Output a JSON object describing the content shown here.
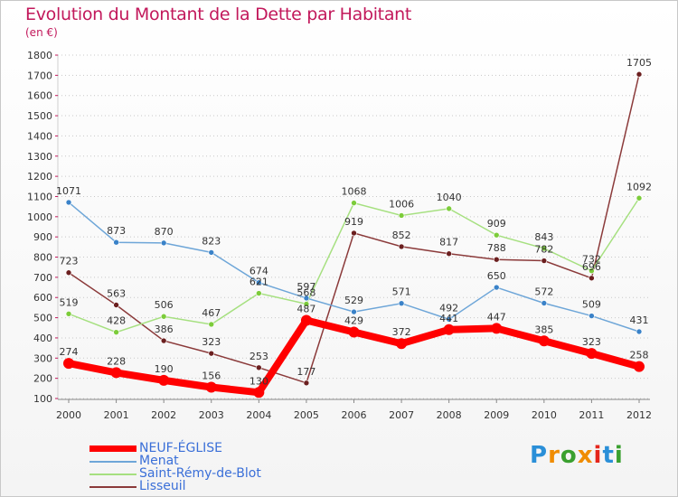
{
  "header": {
    "title": "Evolution du Montant de la Dette par Habitant",
    "unit": "(en €)"
  },
  "logo": {
    "text": "Proxiti",
    "colors": [
      "#2a8fd8",
      "#f08c00",
      "#3aa02f",
      "#f08c00",
      "#e5261c",
      "#2a8fd8",
      "#3aa02f"
    ]
  },
  "chart_data": {
    "type": "line",
    "title": "Evolution du Montant de la Dette par Habitant",
    "subtitle": "(en €)",
    "xlabel": "",
    "ylabel": "",
    "x": [
      "2000",
      "2001",
      "2002",
      "2003",
      "2004",
      "2005",
      "2006",
      "2007",
      "2008",
      "2009",
      "2010",
      "2011",
      "2012"
    ],
    "ylim": [
      100,
      1800
    ],
    "yticks": [
      100,
      200,
      300,
      400,
      500,
      600,
      700,
      800,
      900,
      1000,
      1100,
      1200,
      1300,
      1400,
      1500,
      1600,
      1700,
      1800
    ],
    "grid": "horizontal dotted",
    "legend_position": "bottom-left",
    "series": [
      {
        "name": "NEUF-ÉGLISE",
        "color": "#ff0000",
        "emphasis": true,
        "values": [
          274,
          228,
          190,
          156,
          130,
          487,
          429,
          372,
          441,
          447,
          385,
          323,
          258
        ],
        "labels": [
          "274",
          "228",
          "190",
          "156",
          "130",
          "487",
          "429",
          "372",
          "441",
          "447",
          "385",
          "323",
          "258"
        ]
      },
      {
        "name": "Menat",
        "color": "#6ea6d8",
        "marker": "#3a82c8",
        "values": [
          1071,
          873,
          870,
          823,
          674,
          597,
          529,
          571,
          492,
          650,
          572,
          509,
          431
        ],
        "labels": [
          "1071",
          "873",
          "870",
          "823",
          "674",
          "597",
          "529",
          "571",
          "492",
          "650",
          "572",
          "509",
          "431"
        ]
      },
      {
        "name": "Saint-Rémy-de-Blot",
        "color": "#a6e080",
        "marker": "#7ccc3a",
        "values": [
          519,
          428,
          506,
          467,
          621,
          568,
          1068,
          1006,
          1040,
          909,
          843,
          732,
          1092
        ],
        "labels": [
          "519",
          "428",
          "506",
          "467",
          "621",
          "568",
          "1068",
          "1006",
          "1040",
          "909",
          "843",
          "732",
          "1092"
        ]
      },
      {
        "name": "Lisseuil",
        "color": "#8b3a3a",
        "marker": "#6b1f1f",
        "values": [
          723,
          563,
          386,
          323,
          253,
          177,
          919,
          852,
          817,
          788,
          782,
          696,
          1705
        ],
        "labels": [
          "723",
          "563",
          "386",
          "323",
          "253",
          "177",
          "919",
          "852",
          "817",
          "788",
          "782",
          "696",
          "1705"
        ]
      }
    ]
  }
}
